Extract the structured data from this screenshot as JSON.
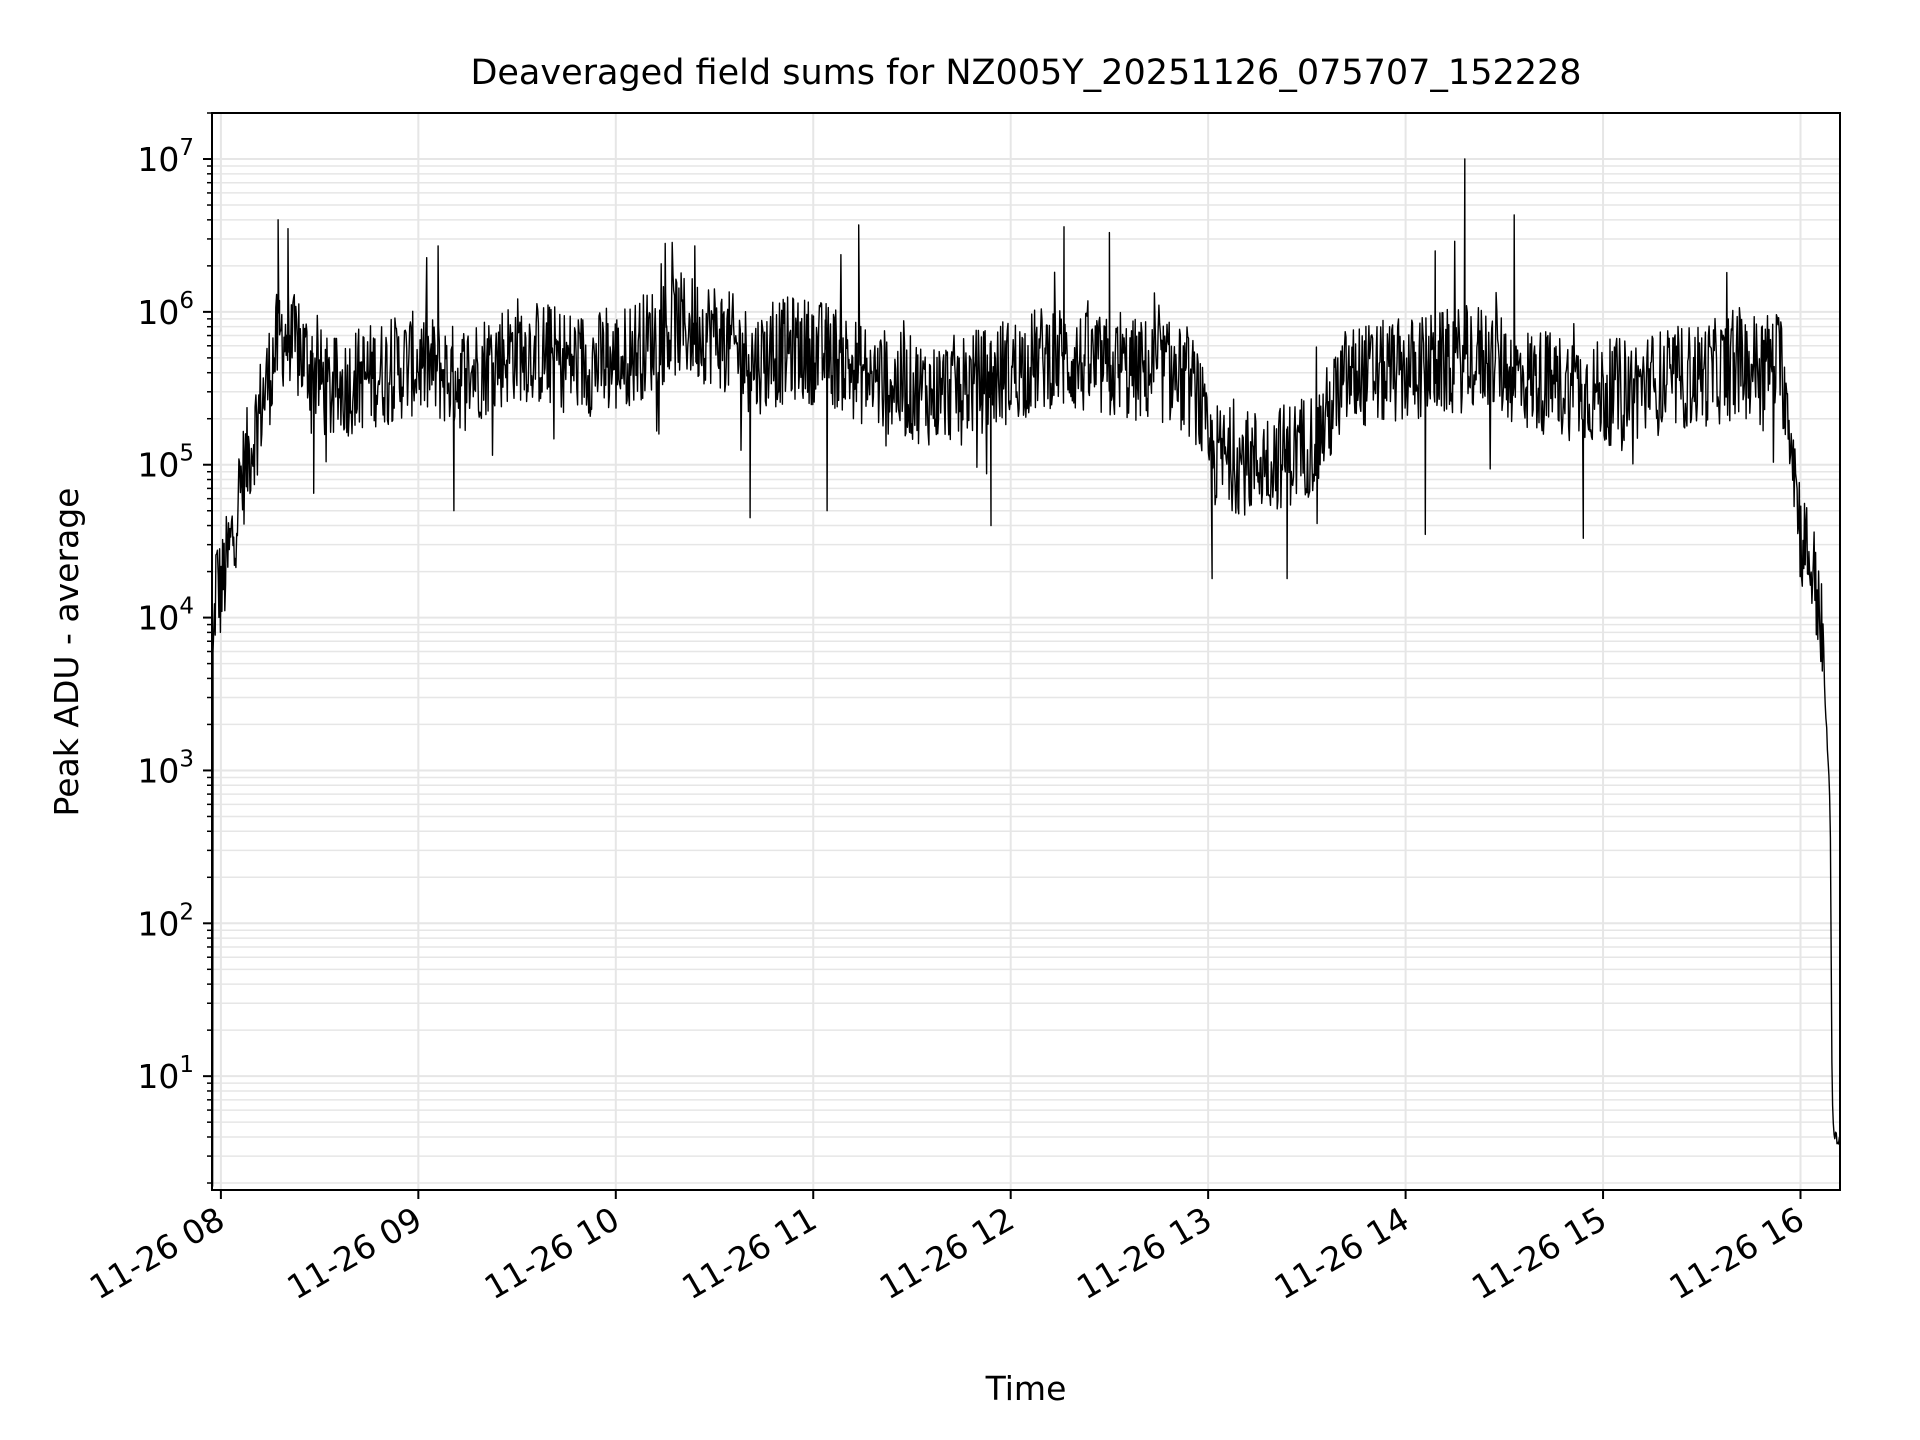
{
  "chart_data": {
    "type": "line",
    "title": "Deaveraged field sums for NZ005Y_20251126_075707_152228",
    "xlabel": "Time",
    "ylabel": "Peak ADU - average",
    "yscale": "log",
    "ylim": [
      1.8,
      20000000
    ],
    "xlim_hours": [
      7.955,
      16.2
    ],
    "grid": true,
    "legend": "none",
    "xticks": [
      {
        "hour": 8,
        "label": "11-26 08"
      },
      {
        "hour": 9,
        "label": "11-26 09"
      },
      {
        "hour": 10,
        "label": "11-26 10"
      },
      {
        "hour": 11,
        "label": "11-26 11"
      },
      {
        "hour": 12,
        "label": "11-26 12"
      },
      {
        "hour": 13,
        "label": "11-26 13"
      },
      {
        "hour": 14,
        "label": "11-26 14"
      },
      {
        "hour": 15,
        "label": "11-26 15"
      },
      {
        "hour": 16,
        "label": "11-26 16"
      }
    ],
    "yticks": [
      {
        "exp": 1,
        "value": 10
      },
      {
        "exp": 2,
        "value": 100
      },
      {
        "exp": 3,
        "value": 1000
      },
      {
        "exp": 4,
        "value": 10000
      },
      {
        "exp": 5,
        "value": 100000
      },
      {
        "exp": 6,
        "value": 1000000
      },
      {
        "exp": 7,
        "value": 10000000
      }
    ],
    "series": [
      {
        "name": "Peak ADU - average",
        "color": "#000000",
        "envelope_hours": [
          7.96,
          7.975,
          8.0,
          8.05,
          8.1,
          8.2,
          8.3,
          8.45,
          8.55,
          8.7,
          9.0,
          9.2,
          9.5,
          9.8,
          10.0,
          10.3,
          10.5,
          10.7,
          10.9,
          11.1,
          11.3,
          11.6,
          11.9,
          12.2,
          12.5,
          12.8,
          12.95,
          13.0,
          13.2,
          13.4,
          13.55,
          13.7,
          14.0,
          14.2,
          14.4,
          14.6,
          14.8,
          15.0,
          15.2,
          15.4,
          15.6,
          15.8,
          15.9,
          15.95,
          16.0,
          16.05,
          16.1,
          16.15,
          16.16,
          16.17,
          16.2
        ],
        "envelope_log10": [
          3.7,
          4.3,
          4.2,
          4.5,
          4.9,
          5.4,
          5.9,
          5.7,
          5.5,
          5.6,
          5.7,
          5.6,
          5.8,
          5.7,
          5.7,
          5.95,
          5.9,
          5.7,
          5.8,
          5.75,
          5.6,
          5.5,
          5.6,
          5.75,
          5.65,
          5.65,
          5.5,
          5.1,
          5.05,
          5.1,
          5.2,
          5.6,
          5.65,
          5.7,
          5.75,
          5.6,
          5.55,
          5.5,
          5.55,
          5.6,
          5.65,
          5.7,
          5.7,
          5.3,
          4.6,
          4.4,
          4.1,
          2.8,
          0.9,
          0.6,
          0.6
        ],
        "noise_log10": 0.35,
        "spikes": [
          {
            "hour": 8.29,
            "value": 4000000
          },
          {
            "hour": 8.34,
            "value": 3500000
          },
          {
            "hour": 9.1,
            "value": 2700000
          },
          {
            "hour": 10.25,
            "value": 2800000
          },
          {
            "hour": 10.4,
            "value": 2700000
          },
          {
            "hour": 11.23,
            "value": 3700000
          },
          {
            "hour": 12.27,
            "value": 3600000
          },
          {
            "hour": 12.5,
            "value": 3300000
          },
          {
            "hour": 14.3,
            "value": 10000000
          },
          {
            "hour": 14.55,
            "value": 4300000
          },
          {
            "hour": 14.15,
            "value": 2500000
          }
        ],
        "dips": [
          {
            "hour": 8.47,
            "value": 65000
          },
          {
            "hour": 9.18,
            "value": 50000
          },
          {
            "hour": 10.68,
            "value": 45000
          },
          {
            "hour": 11.07,
            "value": 50000
          },
          {
            "hour": 11.9,
            "value": 40000
          },
          {
            "hour": 13.02,
            "value": 18000
          },
          {
            "hour": 13.4,
            "value": 18000
          },
          {
            "hour": 14.9,
            "value": 33000
          },
          {
            "hour": 14.1,
            "value": 35000
          }
        ]
      }
    ]
  }
}
